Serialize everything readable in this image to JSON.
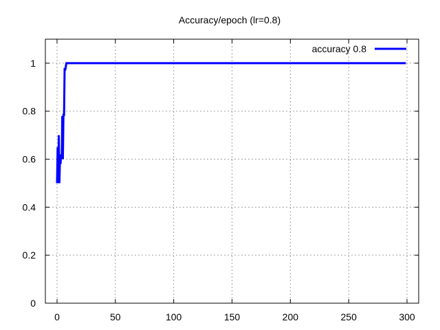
{
  "chart_data": {
    "type": "line",
    "title": "Accuracy/epoch (lr=0.8)",
    "xlabel": "",
    "ylabel": "",
    "xlim": [
      -10,
      310
    ],
    "ylim": [
      0,
      1.1
    ],
    "x_ticks": [
      0,
      50,
      100,
      150,
      200,
      250,
      300
    ],
    "x_tick_labels": [
      "0",
      "50",
      "100",
      "150",
      "200",
      "250",
      "300"
    ],
    "y_ticks": [
      0,
      0.2,
      0.4,
      0.6,
      0.8,
      1
    ],
    "y_tick_labels": [
      "0",
      "0.2",
      "0.4",
      "0.6",
      "0.8",
      "1"
    ],
    "grid": true,
    "legend_position": "top-right",
    "series": [
      {
        "name": "accuracy 0.8",
        "color": "#0000ff",
        "x": [
          0,
          0.5,
          1,
          1.5,
          2,
          2.5,
          3,
          3.5,
          4,
          4.5,
          5,
          5.5,
          6,
          6.5,
          7,
          8,
          9,
          10,
          20,
          50,
          100,
          150,
          200,
          250,
          299
        ],
        "y": [
          0.5,
          0.65,
          0.5,
          0.7,
          0.5,
          0.6,
          0.58,
          0.62,
          0.6,
          0.78,
          0.6,
          0.79,
          0.78,
          0.98,
          0.97,
          1.0,
          1.0,
          1.0,
          1.0,
          1.0,
          1.0,
          1.0,
          1.0,
          1.0,
          1.0
        ]
      }
    ]
  }
}
